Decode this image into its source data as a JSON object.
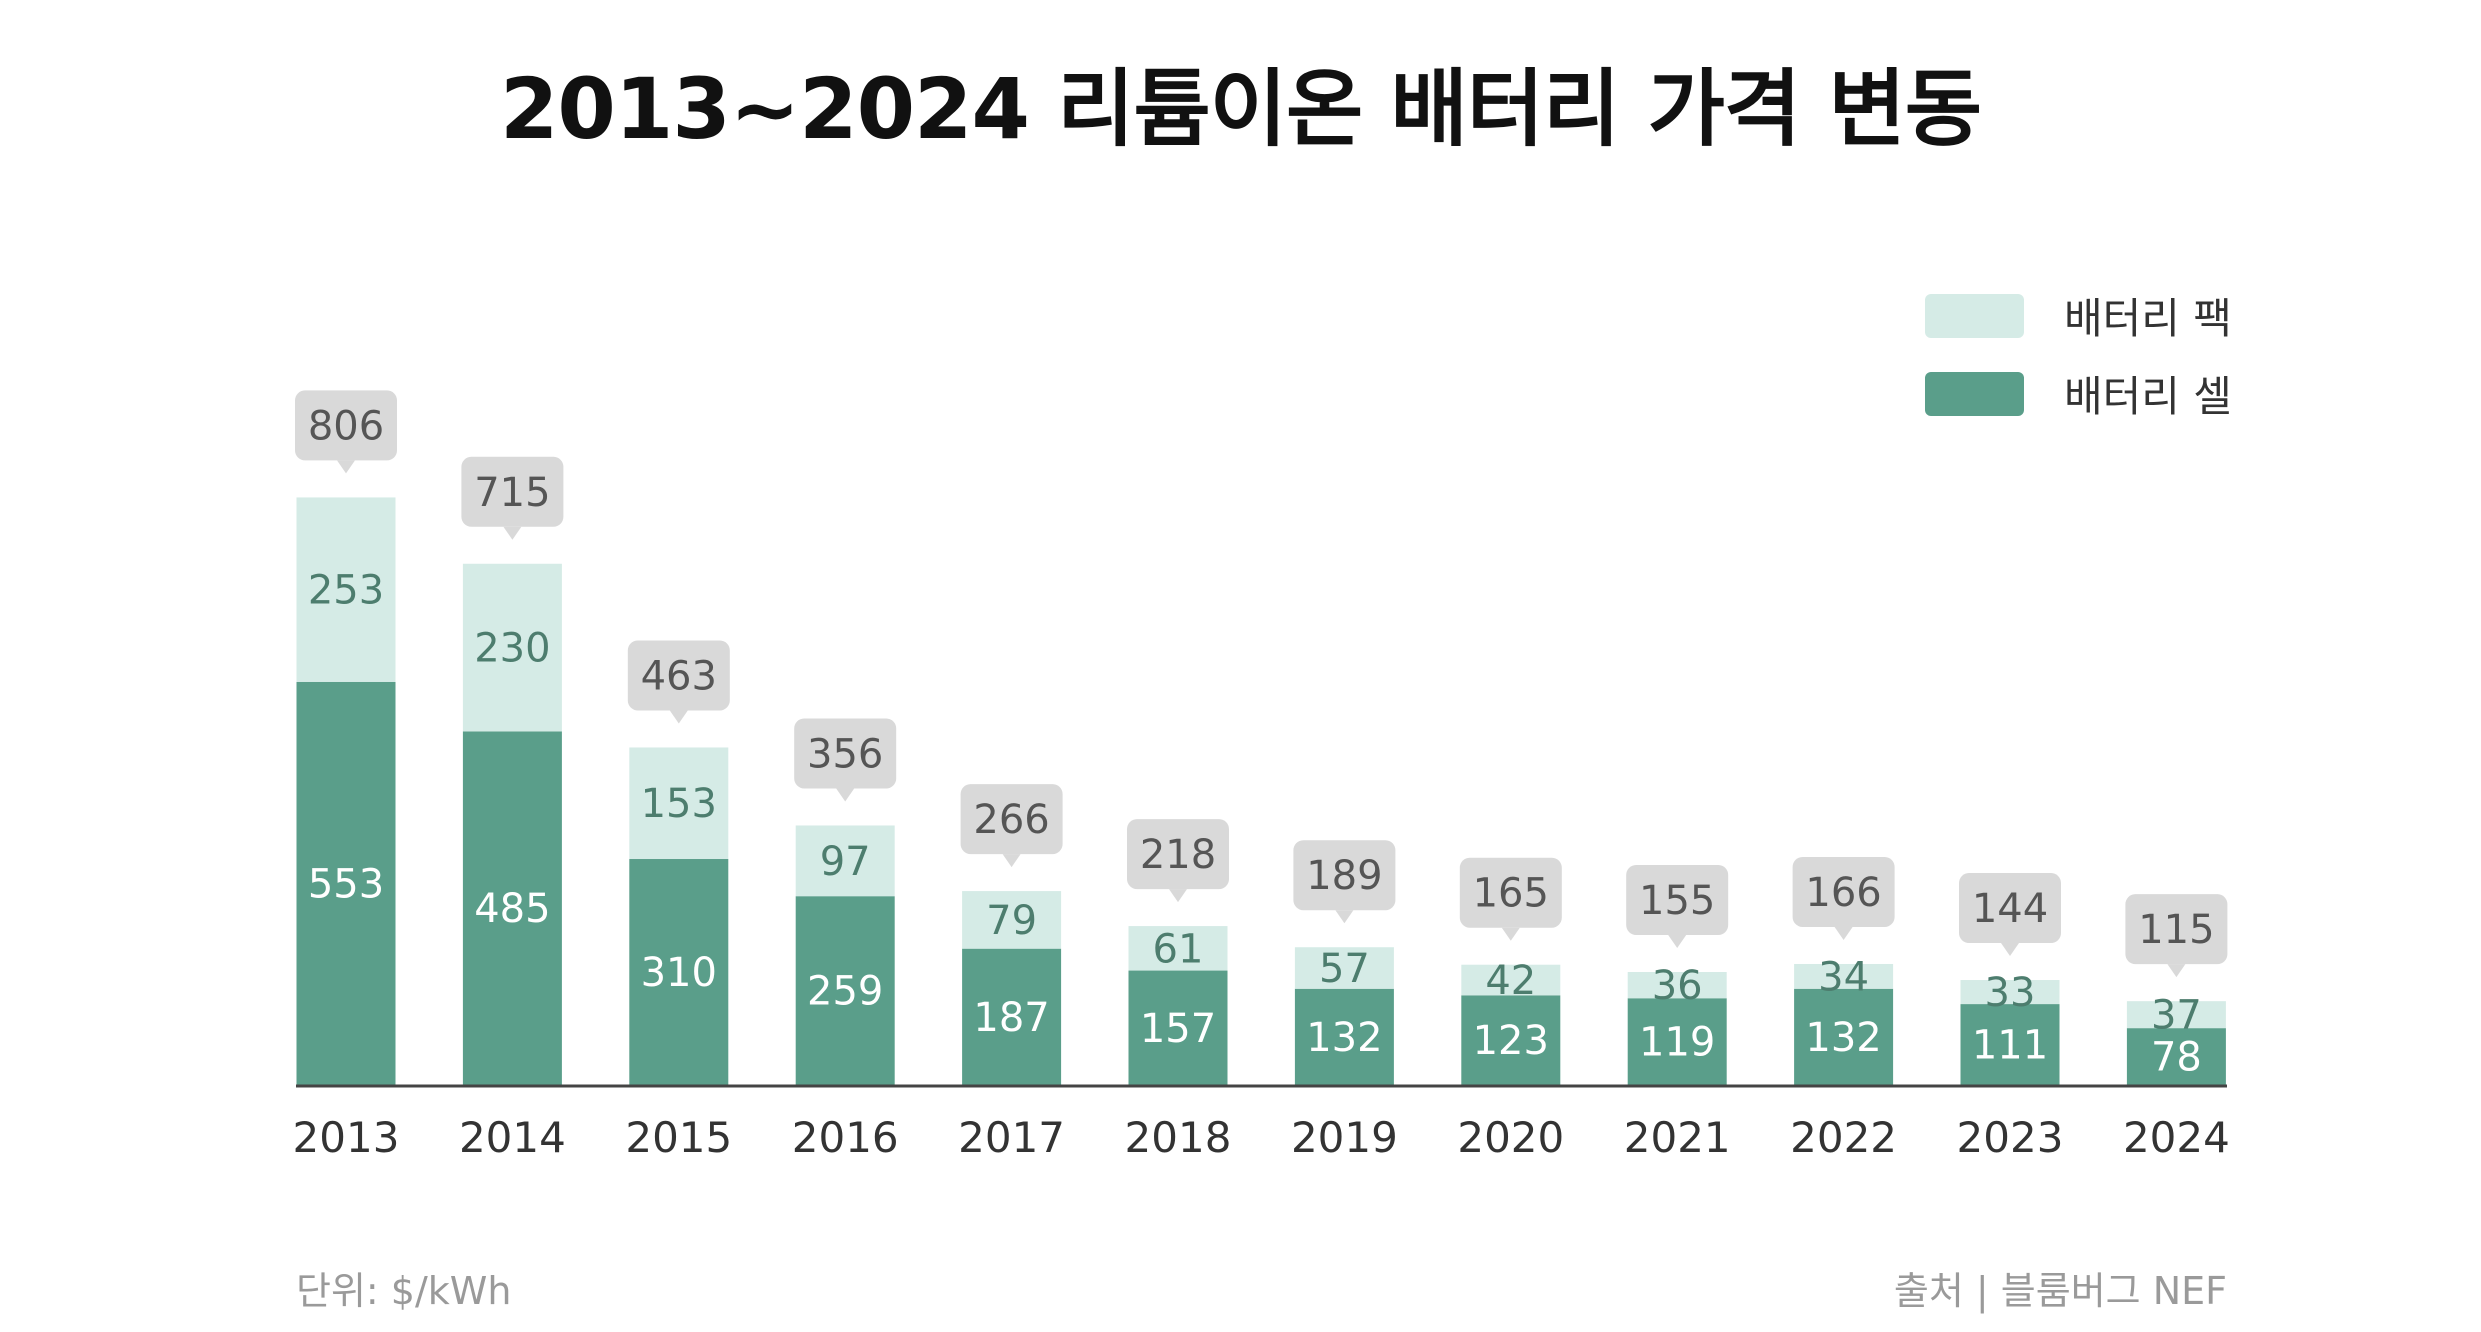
{
  "chart_data": {
    "type": "bar",
    "stacked": true,
    "title": "2013~2024 리튬이온 배터리 가격 변동",
    "categories": [
      "2013",
      "2014",
      "2015",
      "2016",
      "2017",
      "2018",
      "2019",
      "2020",
      "2021",
      "2022",
      "2023",
      "2024"
    ],
    "series": [
      {
        "name": "배터리 셀",
        "color": "#5a9e8a",
        "values": [
          553,
          485,
          310,
          259,
          187,
          157,
          132,
          123,
          119,
          132,
          111,
          78
        ]
      },
      {
        "name": "배터리 팩",
        "color": "#d5ebe6",
        "values": [
          253,
          230,
          153,
          97,
          79,
          61,
          57,
          42,
          36,
          34,
          33,
          37
        ]
      }
    ],
    "totals": [
      806,
      715,
      463,
      356,
      266,
      218,
      189,
      165,
      155,
      166,
      144,
      115
    ],
    "legend_position": "top-right",
    "grid": false,
    "unit_note": "단위: $/kWh",
    "source": "출처 | 블룸버그 NEF"
  }
}
